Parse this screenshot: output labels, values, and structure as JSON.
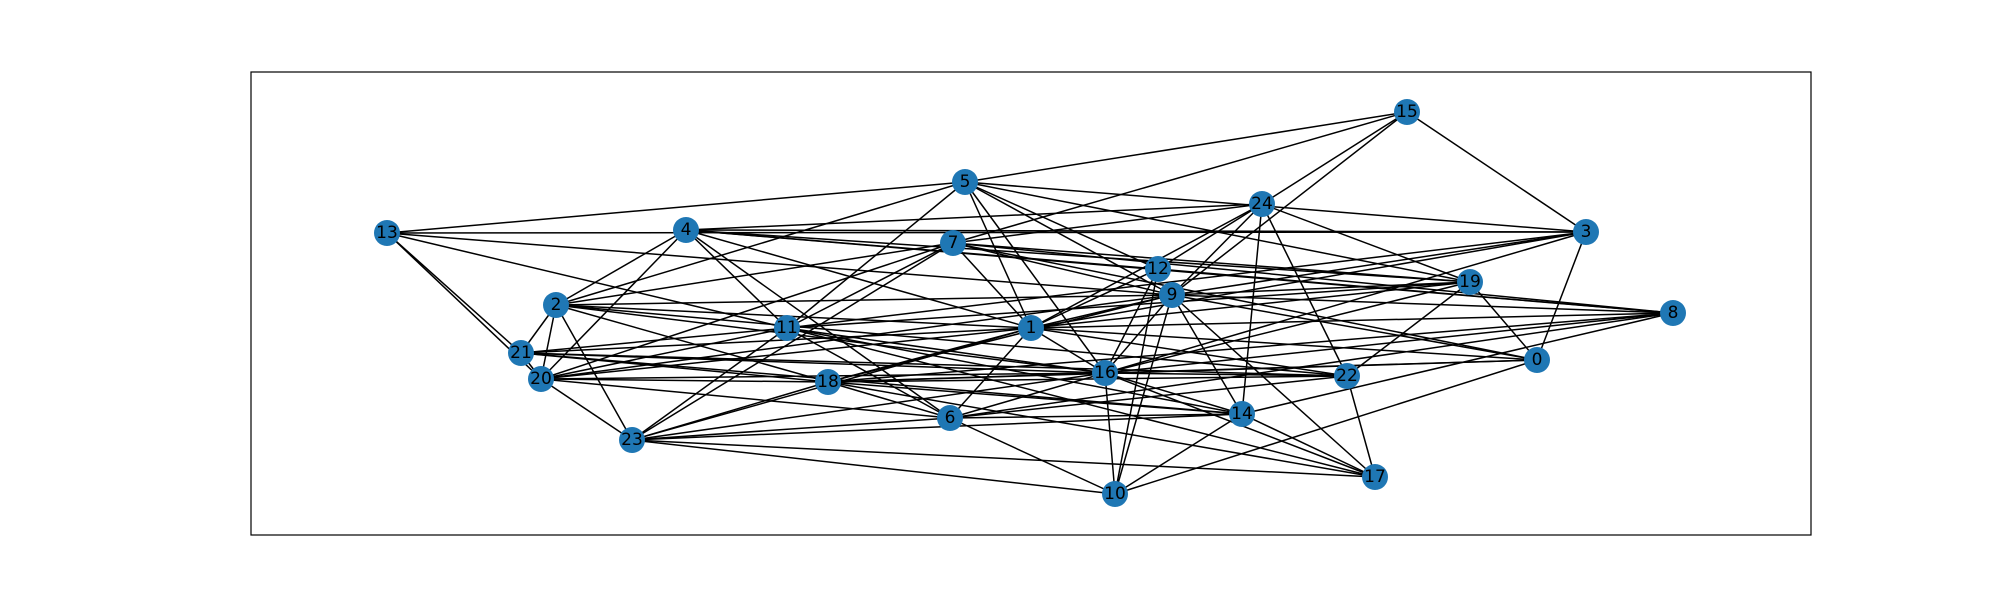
{
  "graph": {
    "node_color": "#1f77b4",
    "edge_color": "#000000",
    "background": "#ffffff",
    "nodes": [
      {
        "id": "0"
      },
      {
        "id": "1"
      },
      {
        "id": "2"
      },
      {
        "id": "3"
      },
      {
        "id": "4"
      },
      {
        "id": "5"
      },
      {
        "id": "6"
      },
      {
        "id": "7"
      },
      {
        "id": "8"
      },
      {
        "id": "9"
      },
      {
        "id": "10"
      },
      {
        "id": "11"
      },
      {
        "id": "12"
      },
      {
        "id": "13"
      },
      {
        "id": "14"
      },
      {
        "id": "15"
      },
      {
        "id": "16"
      },
      {
        "id": "17"
      },
      {
        "id": "18"
      },
      {
        "id": "19"
      },
      {
        "id": "20"
      },
      {
        "id": "21"
      },
      {
        "id": "22"
      },
      {
        "id": "23"
      },
      {
        "id": "24"
      }
    ],
    "edges": [
      [
        "15",
        "5"
      ],
      [
        "15",
        "24"
      ],
      [
        "15",
        "7"
      ],
      [
        "15",
        "3"
      ],
      [
        "15",
        "9"
      ],
      [
        "5",
        "13"
      ],
      [
        "5",
        "2"
      ],
      [
        "5",
        "11"
      ],
      [
        "5",
        "1"
      ],
      [
        "5",
        "12"
      ],
      [
        "5",
        "9"
      ],
      [
        "5",
        "3"
      ],
      [
        "5",
        "19"
      ],
      [
        "5",
        "16"
      ],
      [
        "24",
        "4"
      ],
      [
        "24",
        "7"
      ],
      [
        "24",
        "9"
      ],
      [
        "24",
        "1"
      ],
      [
        "24",
        "14"
      ],
      [
        "24",
        "22"
      ],
      [
        "24",
        "19"
      ],
      [
        "24",
        "12"
      ],
      [
        "13",
        "3"
      ],
      [
        "13",
        "21"
      ],
      [
        "13",
        "11"
      ],
      [
        "13",
        "9"
      ],
      [
        "13",
        "20"
      ],
      [
        "4",
        "2"
      ],
      [
        "4",
        "20"
      ],
      [
        "4",
        "1"
      ],
      [
        "4",
        "6"
      ],
      [
        "4",
        "12"
      ],
      [
        "4",
        "19"
      ],
      [
        "4",
        "8"
      ],
      [
        "4",
        "11"
      ],
      [
        "4",
        "3"
      ],
      [
        "7",
        "2"
      ],
      [
        "7",
        "11"
      ],
      [
        "7",
        "23"
      ],
      [
        "7",
        "1"
      ],
      [
        "7",
        "9"
      ],
      [
        "7",
        "19"
      ],
      [
        "7",
        "0"
      ],
      [
        "7",
        "8"
      ],
      [
        "7",
        "20"
      ],
      [
        "3",
        "9"
      ],
      [
        "3",
        "1"
      ],
      [
        "3",
        "16"
      ],
      [
        "3",
        "0"
      ],
      [
        "3",
        "11"
      ],
      [
        "12",
        "16"
      ],
      [
        "12",
        "10"
      ],
      [
        "12",
        "8"
      ],
      [
        "12",
        "1"
      ],
      [
        "19",
        "9"
      ],
      [
        "19",
        "1"
      ],
      [
        "19",
        "22"
      ],
      [
        "19",
        "0"
      ],
      [
        "19",
        "16"
      ],
      [
        "19",
        "11"
      ],
      [
        "9",
        "2"
      ],
      [
        "9",
        "16"
      ],
      [
        "9",
        "14"
      ],
      [
        "9",
        "17"
      ],
      [
        "9",
        "10"
      ],
      [
        "9",
        "8"
      ],
      [
        "9",
        "18"
      ],
      [
        "9",
        "20"
      ],
      [
        "9",
        "0"
      ],
      [
        "9",
        "1"
      ],
      [
        "8",
        "1"
      ],
      [
        "8",
        "16"
      ],
      [
        "8",
        "14"
      ],
      [
        "8",
        "6"
      ],
      [
        "8",
        "18"
      ],
      [
        "2",
        "18"
      ],
      [
        "2",
        "23"
      ],
      [
        "2",
        "20"
      ],
      [
        "2",
        "21"
      ],
      [
        "2",
        "16"
      ],
      [
        "2",
        "1"
      ],
      [
        "2",
        "22"
      ],
      [
        "11",
        "21"
      ],
      [
        "11",
        "16"
      ],
      [
        "11",
        "17"
      ],
      [
        "11",
        "23"
      ],
      [
        "11",
        "6"
      ],
      [
        "11",
        "14"
      ],
      [
        "11",
        "20"
      ],
      [
        "1",
        "22"
      ],
      [
        "1",
        "18"
      ],
      [
        "1",
        "20"
      ],
      [
        "1",
        "23"
      ],
      [
        "1",
        "16"
      ],
      [
        "1",
        "6"
      ],
      [
        "1",
        "0"
      ],
      [
        "1",
        "21"
      ],
      [
        "0",
        "16"
      ],
      [
        "0",
        "10"
      ],
      [
        "21",
        "20"
      ],
      [
        "21",
        "16"
      ],
      [
        "21",
        "22"
      ],
      [
        "21",
        "14"
      ],
      [
        "21",
        "18"
      ],
      [
        "20",
        "18"
      ],
      [
        "20",
        "23"
      ],
      [
        "20",
        "16"
      ],
      [
        "20",
        "6"
      ],
      [
        "18",
        "16"
      ],
      [
        "18",
        "6"
      ],
      [
        "18",
        "23"
      ],
      [
        "18",
        "14"
      ],
      [
        "18",
        "22"
      ],
      [
        "18",
        "17"
      ],
      [
        "18",
        "0"
      ],
      [
        "16",
        "22"
      ],
      [
        "16",
        "14"
      ],
      [
        "16",
        "6"
      ],
      [
        "16",
        "10"
      ],
      [
        "16",
        "17"
      ],
      [
        "16",
        "23"
      ],
      [
        "22",
        "17"
      ],
      [
        "22",
        "6"
      ],
      [
        "6",
        "14"
      ],
      [
        "6",
        "10"
      ],
      [
        "6",
        "23"
      ],
      [
        "14",
        "10"
      ],
      [
        "14",
        "17"
      ],
      [
        "14",
        "23"
      ],
      [
        "23",
        "10"
      ],
      [
        "23",
        "17"
      ]
    ]
  }
}
